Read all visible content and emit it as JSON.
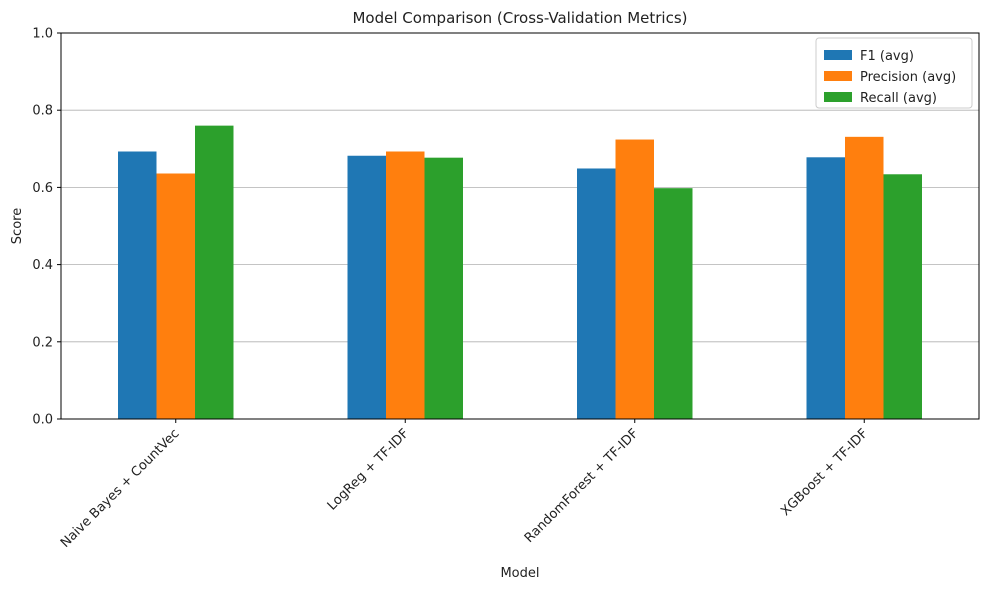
{
  "chart_data": {
    "type": "bar",
    "title": "Model Comparison (Cross-Validation Metrics)",
    "xlabel": "Model",
    "ylabel": "Score",
    "ylim": [
      0,
      1.0
    ],
    "yticks": [
      "0.0",
      "0.2",
      "0.4",
      "0.6",
      "0.8",
      "1.0"
    ],
    "categories": [
      "Naive Bayes + CountVec",
      "LogReg + TF-IDF",
      "RandomForest + TF-IDF",
      "XGBoost + TF-IDF"
    ],
    "series": [
      {
        "name": "F1 (avg)",
        "color": "#1f77b4",
        "values": [
          0.693,
          0.682,
          0.649,
          0.678
        ]
      },
      {
        "name": "Precision (avg)",
        "color": "#ff7f0e",
        "values": [
          0.636,
          0.693,
          0.724,
          0.731
        ]
      },
      {
        "name": "Recall (avg)",
        "color": "#2ca02c",
        "values": [
          0.76,
          0.677,
          0.598,
          0.634
        ]
      }
    ],
    "grid": "y",
    "legend_position": "top-right"
  }
}
